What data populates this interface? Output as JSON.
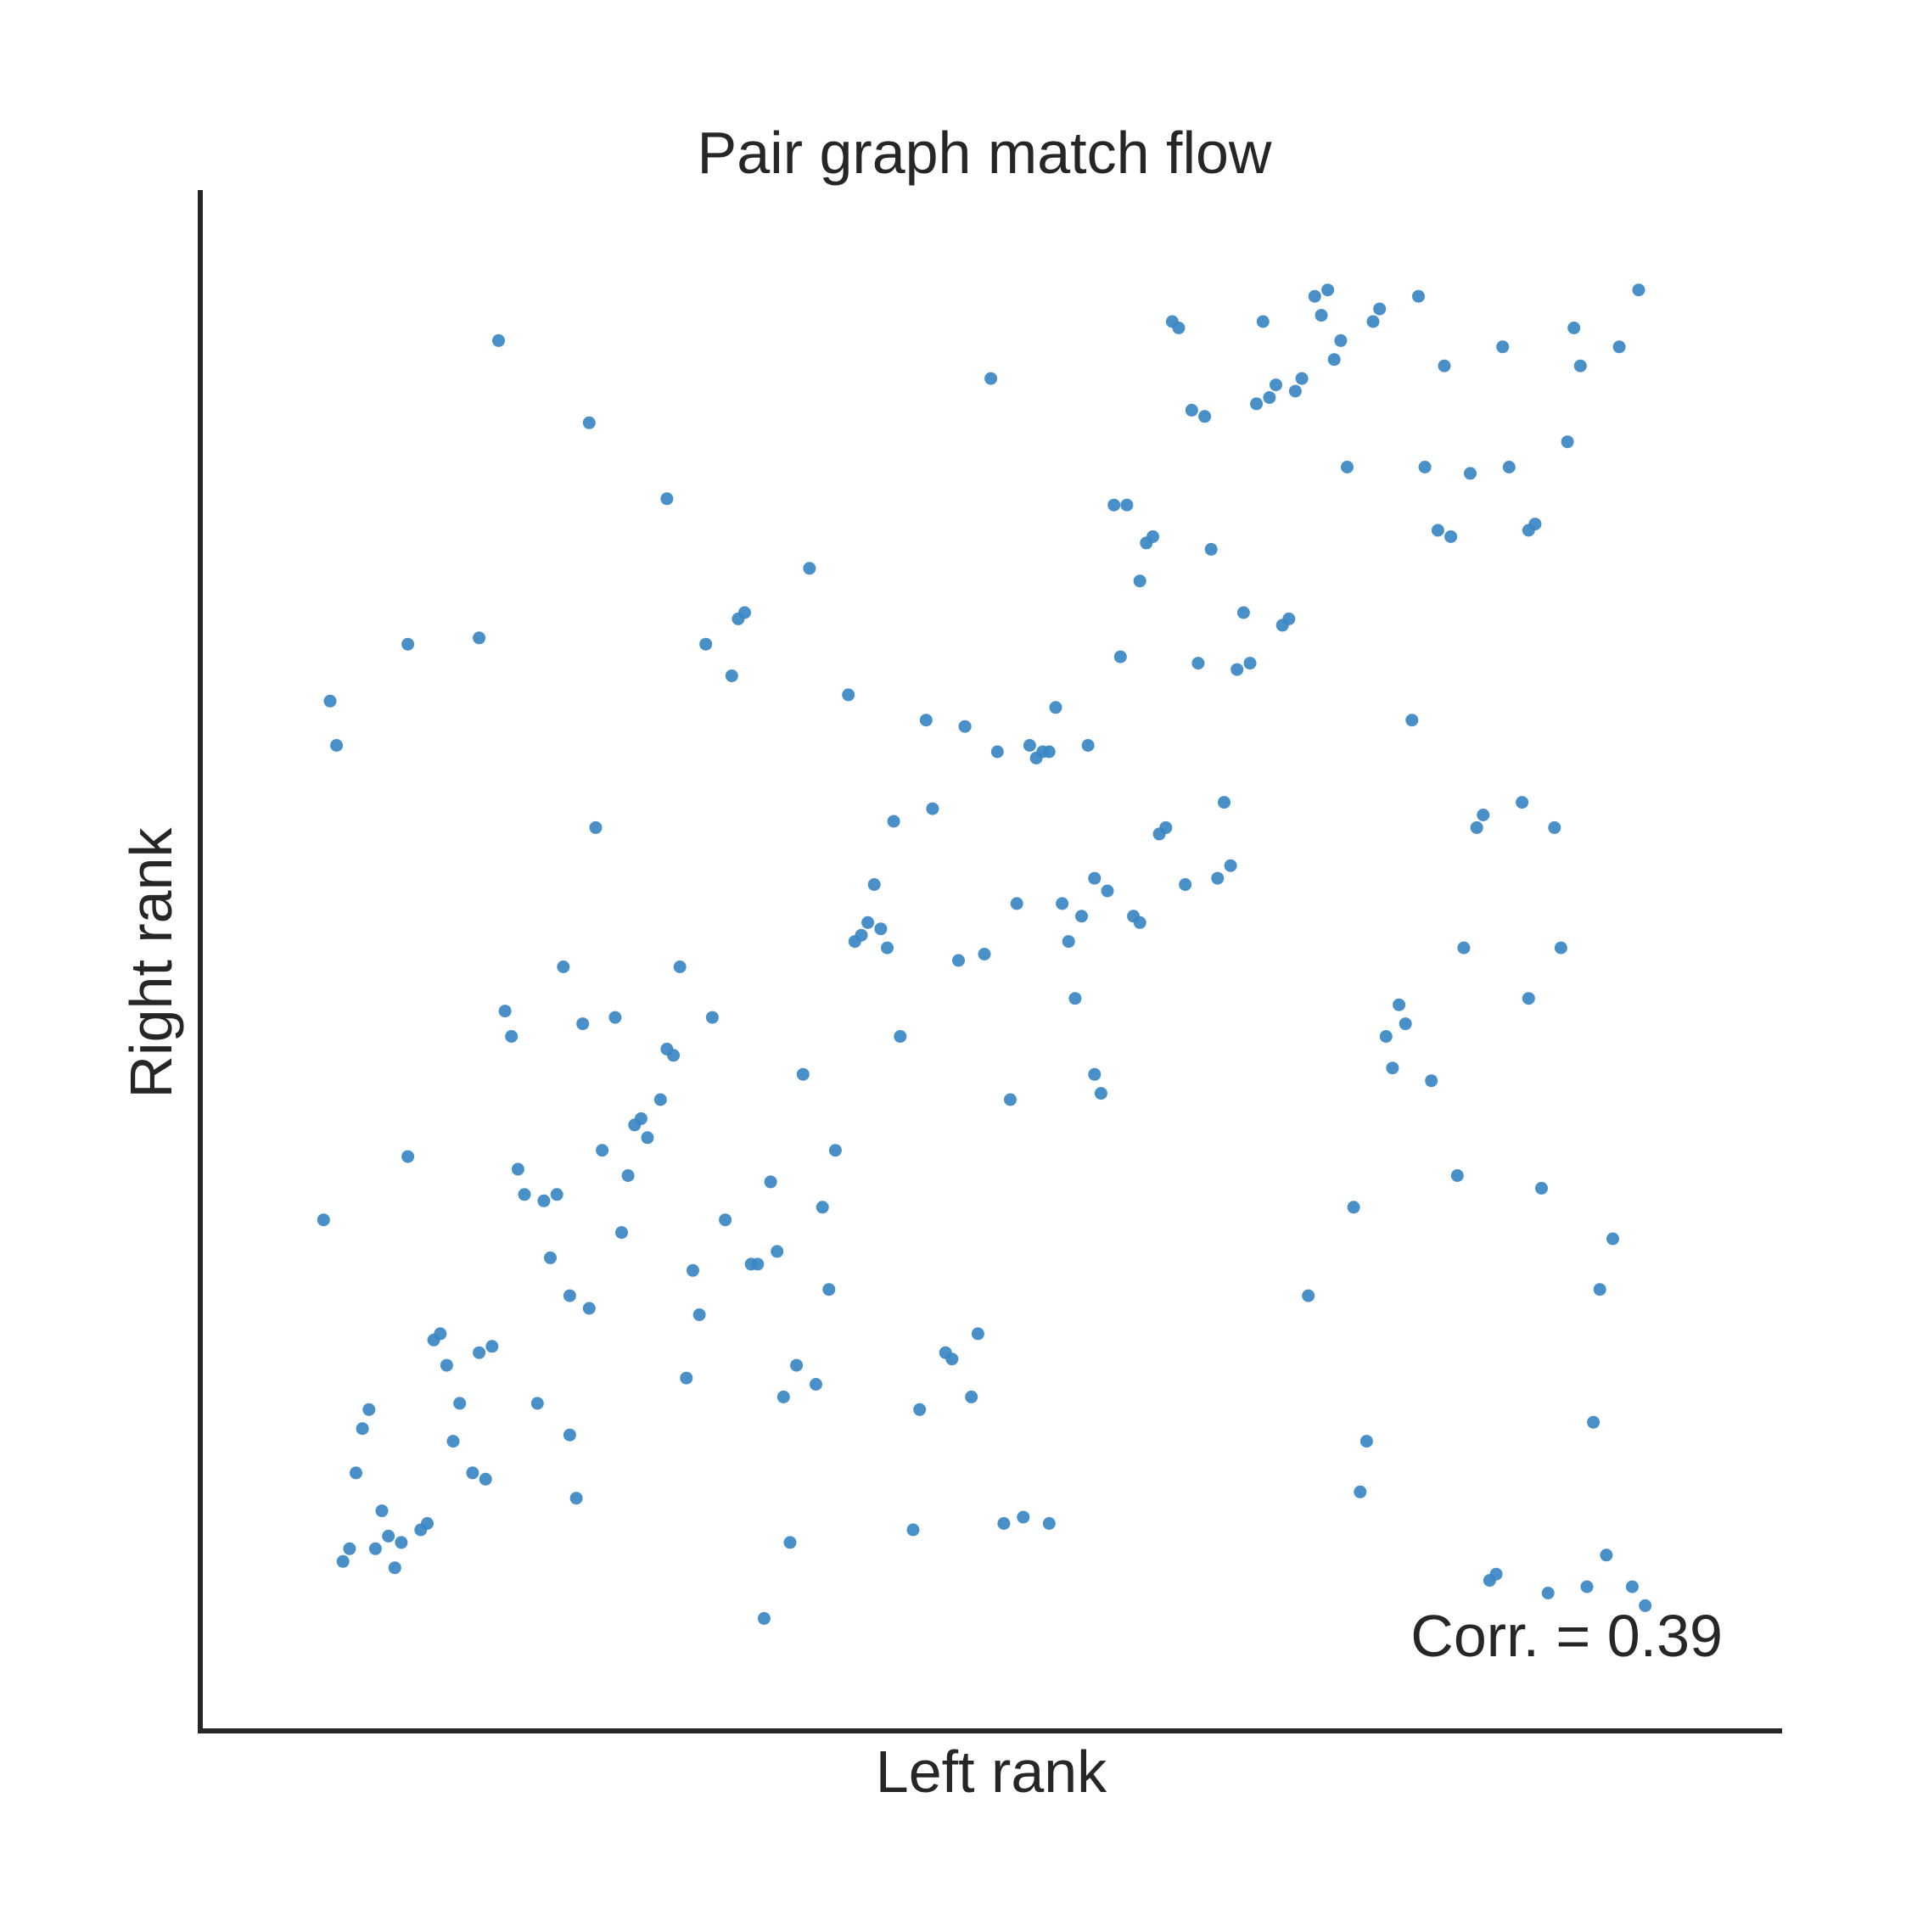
{
  "chart_data": {
    "type": "scatter",
    "title": "Pair graph match flow",
    "xlabel": "Left rank",
    "ylabel": "Right rank",
    "annotation": "Corr. = 0.39",
    "grid": false,
    "xlim": [
      0,
      224
    ],
    "ylim": [
      0,
      224
    ],
    "point_color": "#3a87c4",
    "axis_color": "#262626",
    "points": [
      [
        10,
        71
      ],
      [
        11,
        153
      ],
      [
        12,
        146
      ],
      [
        13,
        17
      ],
      [
        14,
        19
      ],
      [
        15,
        31
      ],
      [
        16,
        38
      ],
      [
        17,
        41
      ],
      [
        18,
        19
      ],
      [
        19,
        25
      ],
      [
        20,
        21
      ],
      [
        21,
        16
      ],
      [
        22,
        20
      ],
      [
        23,
        81
      ],
      [
        23,
        162
      ],
      [
        25,
        22
      ],
      [
        26,
        23
      ],
      [
        27,
        52
      ],
      [
        28,
        53
      ],
      [
        29,
        48
      ],
      [
        30,
        36
      ],
      [
        31,
        42
      ],
      [
        33,
        31
      ],
      [
        34,
        50
      ],
      [
        35,
        30
      ],
      [
        36,
        51
      ],
      [
        34,
        163
      ],
      [
        37,
        210
      ],
      [
        38,
        104
      ],
      [
        39,
        100
      ],
      [
        40,
        79
      ],
      [
        41,
        75
      ],
      [
        43,
        42
      ],
      [
        44,
        74
      ],
      [
        45,
        65
      ],
      [
        46,
        75
      ],
      [
        47,
        111
      ],
      [
        48,
        59
      ],
      [
        48,
        37
      ],
      [
        49,
        27
      ],
      [
        50,
        102
      ],
      [
        51,
        57
      ],
      [
        51,
        197
      ],
      [
        52,
        133
      ],
      [
        53,
        82
      ],
      [
        55,
        103
      ],
      [
        56,
        69
      ],
      [
        57,
        78
      ],
      [
        58,
        86
      ],
      [
        59,
        87
      ],
      [
        60,
        84
      ],
      [
        62,
        90
      ],
      [
        63,
        98
      ],
      [
        63,
        185
      ],
      [
        64,
        97
      ],
      [
        65,
        111
      ],
      [
        66,
        46
      ],
      [
        67,
        63
      ],
      [
        68,
        56
      ],
      [
        69,
        162
      ],
      [
        70,
        103
      ],
      [
        72,
        71
      ],
      [
        73,
        157
      ],
      [
        74,
        166
      ],
      [
        75,
        167
      ],
      [
        76,
        64
      ],
      [
        77,
        64
      ],
      [
        78,
        8
      ],
      [
        79,
        77
      ],
      [
        80,
        66
      ],
      [
        81,
        43
      ],
      [
        82,
        20
      ],
      [
        83,
        48
      ],
      [
        84,
        94
      ],
      [
        85,
        174
      ],
      [
        86,
        45
      ],
      [
        87,
        73
      ],
      [
        88,
        60
      ],
      [
        89,
        82
      ],
      [
        91,
        154
      ],
      [
        92,
        115
      ],
      [
        93,
        116
      ],
      [
        94,
        118
      ],
      [
        95,
        124
      ],
      [
        96,
        117
      ],
      [
        97,
        114
      ],
      [
        98,
        134
      ],
      [
        99,
        100
      ],
      [
        101,
        22
      ],
      [
        102,
        41
      ],
      [
        103,
        150
      ],
      [
        104,
        136
      ],
      [
        106,
        50
      ],
      [
        107,
        49
      ],
      [
        108,
        112
      ],
      [
        109,
        149
      ],
      [
        110,
        43
      ],
      [
        111,
        53
      ],
      [
        112,
        113
      ],
      [
        113,
        204
      ],
      [
        114,
        145
      ],
      [
        115,
        23
      ],
      [
        116,
        90
      ],
      [
        117,
        121
      ],
      [
        118,
        24
      ],
      [
        119,
        146
      ],
      [
        120,
        144
      ],
      [
        121,
        145
      ],
      [
        122,
        145
      ],
      [
        122,
        23
      ],
      [
        123,
        152
      ],
      [
        124,
        121
      ],
      [
        125,
        115
      ],
      [
        126,
        106
      ],
      [
        127,
        119
      ],
      [
        128,
        146
      ],
      [
        129,
        125
      ],
      [
        129,
        94
      ],
      [
        130,
        91
      ],
      [
        131,
        123
      ],
      [
        132,
        184
      ],
      [
        133,
        160
      ],
      [
        134,
        184
      ],
      [
        135,
        119
      ],
      [
        136,
        118
      ],
      [
        136,
        172
      ],
      [
        137,
        178
      ],
      [
        138,
        179
      ],
      [
        139,
        132
      ],
      [
        140,
        133
      ],
      [
        141,
        213
      ],
      [
        142,
        212
      ],
      [
        143,
        124
      ],
      [
        144,
        199
      ],
      [
        145,
        159
      ],
      [
        146,
        198
      ],
      [
        147,
        177
      ],
      [
        148,
        125
      ],
      [
        149,
        137
      ],
      [
        150,
        127
      ],
      [
        151,
        158
      ],
      [
        152,
        167
      ],
      [
        153,
        159
      ],
      [
        154,
        200
      ],
      [
        155,
        213
      ],
      [
        156,
        201
      ],
      [
        157,
        203
      ],
      [
        158,
        165
      ],
      [
        159,
        166
      ],
      [
        160,
        202
      ],
      [
        161,
        204
      ],
      [
        162,
        59
      ],
      [
        163,
        217
      ],
      [
        164,
        214
      ],
      [
        165,
        218
      ],
      [
        166,
        207
      ],
      [
        167,
        210
      ],
      [
        168,
        190
      ],
      [
        169,
        73
      ],
      [
        170,
        28
      ],
      [
        171,
        36
      ],
      [
        172,
        213
      ],
      [
        173,
        215
      ],
      [
        174,
        100
      ],
      [
        175,
        95
      ],
      [
        176,
        105
      ],
      [
        177,
        102
      ],
      [
        178,
        150
      ],
      [
        179,
        217
      ],
      [
        180,
        190
      ],
      [
        181,
        93
      ],
      [
        182,
        180
      ],
      [
        183,
        206
      ],
      [
        184,
        179
      ],
      [
        185,
        78
      ],
      [
        186,
        114
      ],
      [
        187,
        189
      ],
      [
        188,
        133
      ],
      [
        189,
        135
      ],
      [
        190,
        14
      ],
      [
        191,
        15
      ],
      [
        192,
        209
      ],
      [
        193,
        190
      ],
      [
        195,
        137
      ],
      [
        196,
        106
      ],
      [
        196,
        180
      ],
      [
        197,
        181
      ],
      [
        198,
        76
      ],
      [
        199,
        12
      ],
      [
        200,
        133
      ],
      [
        201,
        114
      ],
      [
        202,
        194
      ],
      [
        203,
        212
      ],
      [
        204,
        206
      ],
      [
        205,
        13
      ],
      [
        206,
        39
      ],
      [
        207,
        60
      ],
      [
        208,
        18
      ],
      [
        209,
        68
      ],
      [
        210,
        209
      ],
      [
        212,
        13
      ],
      [
        213,
        218
      ],
      [
        214,
        10
      ]
    ]
  }
}
